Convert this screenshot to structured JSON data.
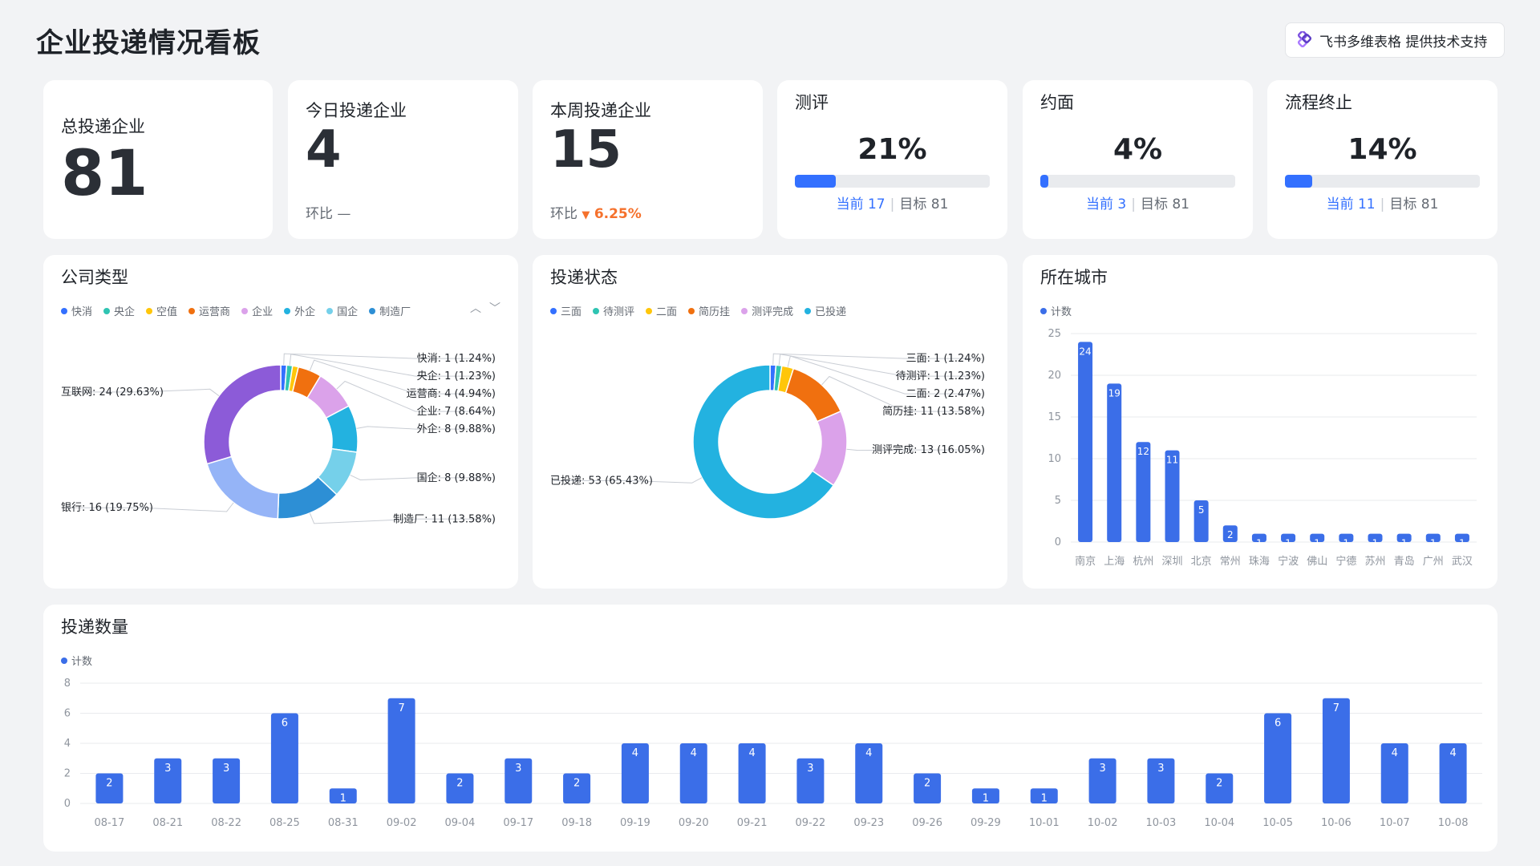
{
  "page": {
    "title": "企业投递情况看板"
  },
  "badge": {
    "text": "飞书多维表格 提供技术支持"
  },
  "kpi": {
    "total": {
      "label": "总投递企业",
      "value": "81"
    },
    "today": {
      "label": "今日投递企业",
      "value": "4",
      "ratio_label": "环比",
      "ratio_value": "—"
    },
    "week": {
      "label": "本周投递企业",
      "value": "15",
      "ratio_label": "环比",
      "ratio_value": "6.25%",
      "ratio_arrow": "▼"
    }
  },
  "progress": [
    {
      "title": "测评",
      "pct": "21%",
      "fill": 0.21,
      "current_label": "当前 17",
      "target_label": "目标 81"
    },
    {
      "title": "约面",
      "pct": "4%",
      "fill": 0.04,
      "current_label": "当前 3",
      "target_label": "目标 81"
    },
    {
      "title": "流程终止",
      "pct": "14%",
      "fill": 0.14,
      "current_label": "当前 11",
      "target_label": "目标 81"
    }
  ],
  "colors": {
    "accent": "#3370ff",
    "bar": "#3b6ee8",
    "down": "#f5712c"
  },
  "chart_data": [
    {
      "type": "pie",
      "title": "公司类型",
      "legend": [
        "快消",
        "央企",
        "空值",
        "运营商",
        "企业",
        "外企",
        "国企",
        "制造厂"
      ],
      "slices": [
        {
          "name": "快消",
          "value": 1,
          "label": "快消: 1 (1.24%)",
          "color": "#3370ff"
        },
        {
          "name": "央企",
          "value": 1,
          "label": "央企: 1 (1.23%)",
          "color": "#2fc4b2"
        },
        {
          "name": "空值",
          "value": 1,
          "label": "",
          "color": "#ffc60a"
        },
        {
          "name": "运营商",
          "value": 4,
          "label": "运营商: 4 (4.94%)",
          "color": "#f0700f"
        },
        {
          "name": "企业",
          "value": 7,
          "label": "企业: 7 (8.64%)",
          "color": "#dba2ea"
        },
        {
          "name": "外企",
          "value": 8,
          "label": "外企: 8 (9.88%)",
          "color": "#23b2e0"
        },
        {
          "name": "国企",
          "value": 8,
          "label": "国企: 8 (9.88%)",
          "color": "#75d0ea"
        },
        {
          "name": "制造厂",
          "value": 11,
          "label": "制造厂: 11 (13.58%)",
          "color": "#2d8fd5"
        },
        {
          "name": "银行",
          "value": 16,
          "label": "银行: 16 (19.75%)",
          "color": "#95b4f7"
        },
        {
          "name": "互联网",
          "value": 24,
          "label": "互联网: 24 (29.63%)",
          "color": "#8c5bd8"
        }
      ]
    },
    {
      "type": "pie",
      "title": "投递状态",
      "legend": [
        "三面",
        "待测评",
        "二面",
        "简历挂",
        "测评完成",
        "已投递"
      ],
      "slices": [
        {
          "name": "三面",
          "value": 1,
          "label": "三面: 1 (1.24%)",
          "color": "#3370ff"
        },
        {
          "name": "待测评",
          "value": 1,
          "label": "待测评: 1 (1.23%)",
          "color": "#2fc4b2"
        },
        {
          "name": "二面",
          "value": 2,
          "label": "二面: 2 (2.47%)",
          "color": "#ffc60a"
        },
        {
          "name": "简历挂",
          "value": 11,
          "label": "简历挂: 11 (13.58%)",
          "color": "#f0700f"
        },
        {
          "name": "测评完成",
          "value": 13,
          "label": "测评完成: 13 (16.05%)",
          "color": "#dba2ea"
        },
        {
          "name": "已投递",
          "value": 53,
          "label": "已投递: 53 (65.43%)",
          "color": "#23b2e0"
        }
      ]
    },
    {
      "type": "bar",
      "title": "所在城市",
      "legend": [
        "计数"
      ],
      "categories": [
        "南京",
        "上海",
        "杭州",
        "深圳",
        "北京",
        "常州",
        "珠海",
        "宁波",
        "佛山",
        "宁德",
        "苏州",
        "青岛",
        "广州",
        "武汉"
      ],
      "values": [
        24,
        19,
        12,
        11,
        5,
        2,
        1,
        1,
        1,
        1,
        1,
        1,
        1,
        1
      ],
      "yticks": [
        "0",
        "5",
        "10",
        "15",
        "20",
        "25"
      ],
      "ylim": [
        0,
        25
      ],
      "grid": true
    },
    {
      "type": "bar",
      "title": "投递数量",
      "legend": [
        "计数"
      ],
      "categories": [
        "08-17",
        "08-21",
        "08-22",
        "08-25",
        "08-31",
        "09-02",
        "09-04",
        "09-17",
        "09-18",
        "09-19",
        "09-20",
        "09-21",
        "09-22",
        "09-23",
        "09-26",
        "09-29",
        "10-01",
        "10-02",
        "10-03",
        "10-04",
        "10-05",
        "10-06",
        "10-07",
        "10-08"
      ],
      "values": [
        2,
        3,
        3,
        6,
        1,
        7,
        2,
        3,
        2,
        4,
        4,
        4,
        3,
        4,
        2,
        1,
        1,
        3,
        3,
        2,
        6,
        7,
        4,
        4
      ],
      "yticks": [
        "0",
        "2",
        "4",
        "6",
        "8"
      ],
      "ylim": [
        0,
        8
      ],
      "grid": true
    }
  ]
}
